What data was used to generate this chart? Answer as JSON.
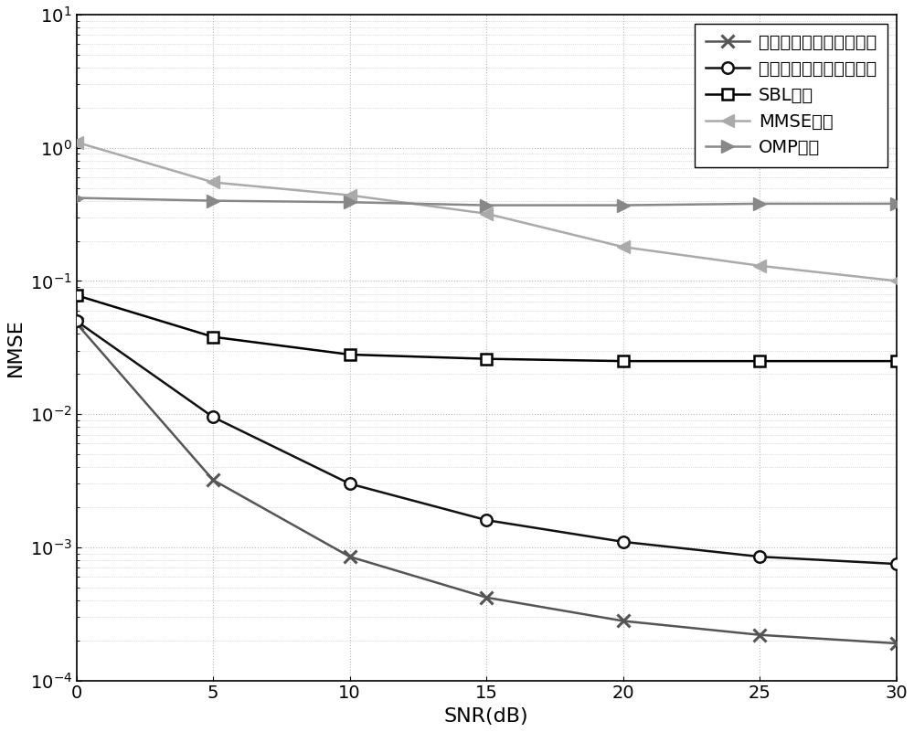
{
  "snr": [
    0,
    5,
    10,
    15,
    20,
    25,
    30
  ],
  "taylor": [
    0.048,
    0.0032,
    0.00085,
    0.00042,
    0.00028,
    0.00022,
    0.00019
  ],
  "linear": [
    0.05,
    0.0095,
    0.003,
    0.0016,
    0.0011,
    0.00085,
    0.00075
  ],
  "sbl": [
    0.078,
    0.038,
    0.028,
    0.026,
    0.025,
    0.025,
    0.025
  ],
  "mmse": [
    1.1,
    0.55,
    0.44,
    0.32,
    0.18,
    0.13,
    0.1
  ],
  "omp": [
    0.42,
    0.4,
    0.39,
    0.37,
    0.37,
    0.38,
    0.38
  ],
  "taylor_color": "#555555",
  "linear_color": "#111111",
  "sbl_color": "#000000",
  "mmse_color": "#aaaaaa",
  "omp_color": "#888888",
  "taylor_label": "本发明方法（泰勒展开）",
  "linear_label": "本发明方法（线性插値）",
  "sbl_label": "SBL算法",
  "mmse_label": "MMSE算法",
  "omp_label": "OMP算法",
  "xlabel": "SNR(dB)",
  "ylabel": "NMSE",
  "ylim_min": 0.0001,
  "ylim_max": 10,
  "xlim_min": 0,
  "xlim_max": 30,
  "xticks": [
    0,
    5,
    10,
    15,
    20,
    25,
    30
  ],
  "bg_color": "#ffffff",
  "grid_color": "#cccccc"
}
